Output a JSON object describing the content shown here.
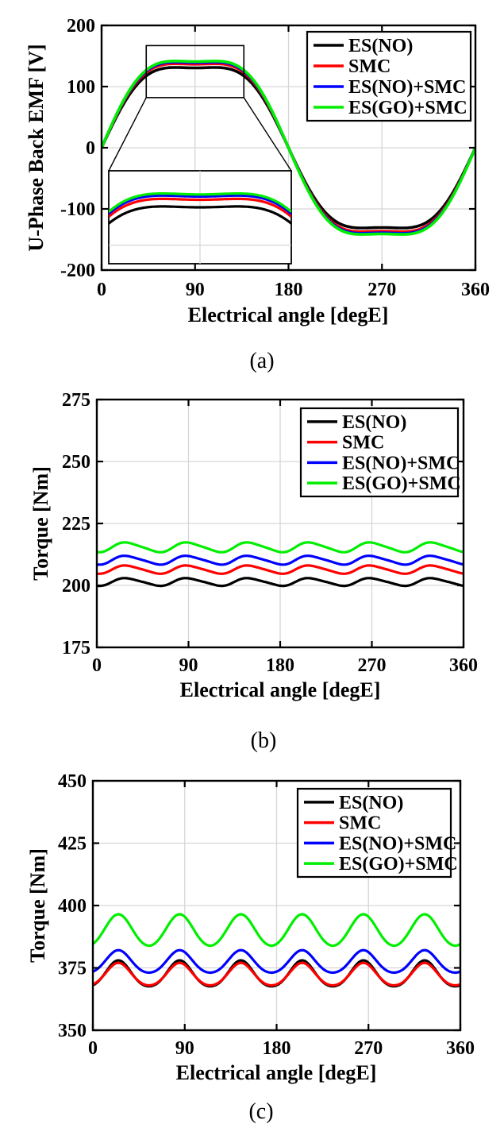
{
  "figure": {
    "background": "#ffffff",
    "grid_color": "#d6d6d6",
    "axis_color": "#000000",
    "legend_entries": [
      "ES(NO)",
      "SMC",
      "ES(NO)+SMC",
      "ES(GO)+SMC"
    ],
    "series_colors": [
      "#000000",
      "#ff0000",
      "#0000ff",
      "#00ee00"
    ]
  },
  "chart_data": [
    {
      "id": "a",
      "type": "line",
      "caption": "(a)",
      "xlabel": "Electrical angle [degE]",
      "ylabel": "U-Phase Back EMF [V]",
      "xlim": [
        0,
        360
      ],
      "ylim": [
        -200,
        200
      ],
      "xticks": [
        0,
        90,
        180,
        270,
        360
      ],
      "yticks": [
        200,
        100,
        0,
        -100,
        -200
      ],
      "grid": true,
      "legend_position": "top-right",
      "x_step": 30,
      "x": [
        0,
        30,
        60,
        90,
        120,
        150,
        180,
        210,
        240,
        270,
        300,
        330,
        360
      ],
      "series": [
        {
          "name": "ES(NO)",
          "color": "#000000",
          "values": [
            0,
            95,
            130,
            131,
            130,
            95,
            0,
            -95,
            -130,
            -131,
            -130,
            -95,
            0
          ],
          "peak_value": 131,
          "model": {
            "type": "sin_harmonics",
            "harmonics": [
              {
                "order": 1,
                "amp": 150
              },
              {
                "order": 3,
                "amp": 19.5
              }
            ]
          }
        },
        {
          "name": "SMC",
          "color": "#ff0000",
          "values": [
            0,
            99,
            136,
            137,
            136,
            99,
            0,
            -99,
            -136,
            -137,
            -136,
            -99,
            0
          ],
          "peak_value": 137,
          "model": {
            "type": "sin_harmonics",
            "harmonics": [
              {
                "order": 1,
                "amp": 157
              },
              {
                "order": 3,
                "amp": 20.4
              }
            ]
          }
        },
        {
          "name": "ES(NO)+SMC",
          "color": "#0000ff",
          "values": [
            0,
            101,
            139,
            139,
            139,
            101,
            0,
            -101,
            -139,
            -139,
            -139,
            -101,
            0
          ],
          "peak_value": 139,
          "model": {
            "type": "sin_harmonics",
            "harmonics": [
              {
                "order": 1,
                "amp": 160
              },
              {
                "order": 3,
                "amp": 20.8
              }
            ]
          }
        },
        {
          "name": "ES(GO)+SMC",
          "color": "#00ee00",
          "values": [
            0,
            102,
            140,
            141,
            140,
            102,
            0,
            -102,
            -140,
            -141,
            -140,
            -102,
            0
          ],
          "peak_value": 141,
          "model": {
            "type": "sin_harmonics",
            "harmonics": [
              {
                "order": 1,
                "amp": 162
              },
              {
                "order": 3,
                "amp": 21.1
              }
            ]
          }
        }
      ],
      "inset": {
        "xlim": [
          43,
          137
        ],
        "ylim": [
          85,
          160
        ],
        "source_rect": {
          "x": [
            43,
            137
          ],
          "y": [
            82,
            167
          ]
        },
        "gridline_x": 90,
        "gridline_y": 100
      }
    },
    {
      "id": "b",
      "type": "line",
      "caption": "(b)",
      "xlabel": "Electrical angle [degE]",
      "ylabel": "Torque [Nm]",
      "xlim": [
        0,
        360
      ],
      "ylim": [
        175,
        275
      ],
      "xticks": [
        0,
        90,
        180,
        270,
        360
      ],
      "yticks": [
        275,
        250,
        225,
        200,
        175
      ],
      "grid": true,
      "legend_position": "top-right",
      "x_step": 30,
      "x": [
        0,
        30,
        60,
        90,
        120,
        150,
        180,
        210,
        240,
        270,
        300,
        330,
        360
      ],
      "series": [
        {
          "name": "ES(NO)",
          "color": "#000000",
          "values": [
            199.9,
            202.9,
            199.9,
            202.9,
            199.9,
            202.9,
            199.9,
            202.9,
            199.9,
            202.9,
            199.9,
            202.9,
            199.9
          ],
          "mean": 201.4,
          "ripple_min": 199.9,
          "ripple_max": 203.0,
          "model": {
            "type": "mean_ripple",
            "mean": 201.4,
            "harmonics": [
              {
                "order": 6,
                "amp": 1.5,
                "peak_deg": 30
              },
              {
                "order": 12,
                "amp": 0.25,
                "peak_deg": 22
              }
            ]
          }
        },
        {
          "name": "SMC",
          "color": "#ff0000",
          "values": [
            204.8,
            208.0,
            204.8,
            208.0,
            204.8,
            208.0,
            204.8,
            208.0,
            204.8,
            208.0,
            204.8,
            208.0,
            204.8
          ],
          "mean": 206.4,
          "ripple_min": 204.8,
          "ripple_max": 208.1,
          "model": {
            "type": "mean_ripple",
            "mean": 206.4,
            "harmonics": [
              {
                "order": 6,
                "amp": 1.6,
                "peak_deg": 30
              },
              {
                "order": 12,
                "amp": 0.25,
                "peak_deg": 22
              }
            ]
          }
        },
        {
          "name": "ES(NO)+SMC",
          "color": "#0000ff",
          "values": [
            208.5,
            211.9,
            208.5,
            211.9,
            208.5,
            211.9,
            208.5,
            211.9,
            208.5,
            211.9,
            208.5,
            211.9,
            208.5
          ],
          "mean": 210.2,
          "ripple_min": 208.5,
          "ripple_max": 211.9,
          "model": {
            "type": "mean_ripple",
            "mean": 210.2,
            "harmonics": [
              {
                "order": 6,
                "amp": 1.7,
                "peak_deg": 30
              },
              {
                "order": 12,
                "amp": 0.3,
                "peak_deg": 22
              }
            ]
          }
        },
        {
          "name": "ES(GO)+SMC",
          "color": "#00ee00",
          "values": [
            213.5,
            217.3,
            213.5,
            217.3,
            213.5,
            217.3,
            213.5,
            217.3,
            213.5,
            217.3,
            213.5,
            217.3,
            213.5
          ],
          "mean": 215.4,
          "ripple_min": 213.5,
          "ripple_max": 217.4,
          "model": {
            "type": "mean_ripple",
            "mean": 215.4,
            "harmonics": [
              {
                "order": 6,
                "amp": 1.9,
                "peak_deg": 30
              },
              {
                "order": 12,
                "amp": 0.3,
                "peak_deg": 22
              }
            ]
          }
        }
      ]
    },
    {
      "id": "c",
      "type": "line",
      "caption": "(c)",
      "xlabel": "Electrical angle [degE]",
      "ylabel": "Torque [Nm]",
      "xlim": [
        0,
        360
      ],
      "ylim": [
        350,
        450
      ],
      "xticks": [
        0,
        90,
        180,
        270,
        360
      ],
      "yticks": [
        450,
        425,
        400,
        375,
        350
      ],
      "grid": true,
      "legend_position": "top-right",
      "x_step": 30,
      "x": [
        0,
        30,
        60,
        90,
        120,
        150,
        180,
        210,
        240,
        270,
        300,
        330,
        360
      ],
      "series": [
        {
          "name": "ES(NO)",
          "color": "#000000",
          "values": [
            368.0,
            377.1,
            368.0,
            377.1,
            368.0,
            377.1,
            368.0,
            377.1,
            368.0,
            377.1,
            368.0,
            377.1,
            368.0
          ],
          "mean": 372.3,
          "ripple_min": 367.1,
          "ripple_max": 377.6,
          "model": {
            "type": "mean_ripple",
            "mean": 372.3,
            "harmonics": [
              {
                "order": 6,
                "amp": 5.2,
                "peak_deg": 25
              },
              {
                "order": 12,
                "amp": 0.5,
                "peak_deg": 25
              }
            ]
          }
        },
        {
          "name": "SMC",
          "color": "#ff0000",
          "values": [
            368.4,
            376.2,
            368.4,
            376.2,
            368.4,
            376.2,
            368.4,
            376.2,
            368.4,
            376.2,
            368.4,
            376.2,
            368.4
          ],
          "mean": 372.1,
          "ripple_min": 367.9,
          "ripple_max": 376.7,
          "model": {
            "type": "mean_ripple",
            "mean": 372.1,
            "harmonics": [
              {
                "order": 6,
                "amp": 4.5,
                "peak_deg": 25
              },
              {
                "order": 12,
                "amp": 0.4,
                "peak_deg": 25
              }
            ]
          }
        },
        {
          "name": "ES(NO)+SMC",
          "color": "#0000ff",
          "values": [
            373.5,
            381.3,
            373.5,
            381.3,
            373.5,
            381.3,
            373.5,
            381.3,
            373.5,
            381.3,
            373.5,
            381.3,
            373.5
          ],
          "mean": 377.2,
          "ripple_min": 372.9,
          "ripple_max": 381.8,
          "model": {
            "type": "mean_ripple",
            "mean": 377.2,
            "harmonics": [
              {
                "order": 6,
                "amp": 4.5,
                "peak_deg": 25
              },
              {
                "order": 12,
                "amp": 0.4,
                "peak_deg": 25
              }
            ]
          }
        },
        {
          "name": "ES(GO)+SMC",
          "color": "#00ee00",
          "values": [
            384.6,
            395.5,
            384.6,
            395.5,
            384.6,
            395.5,
            384.6,
            395.5,
            384.6,
            395.5,
            384.6,
            395.5,
            384.6
          ],
          "mean": 389.9,
          "ripple_min": 383.5,
          "ripple_max": 396.4,
          "model": {
            "type": "mean_ripple",
            "mean": 389.9,
            "harmonics": [
              {
                "order": 6,
                "amp": 6.3,
                "peak_deg": 25
              },
              {
                "order": 12,
                "amp": 0.3,
                "peak_deg": 25
              }
            ]
          }
        }
      ]
    }
  ]
}
